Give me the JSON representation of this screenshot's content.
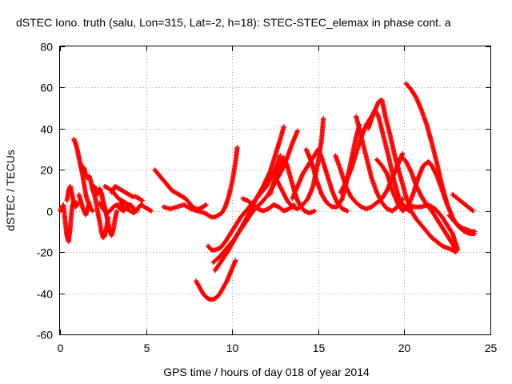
{
  "chart_data": {
    "type": "scatter",
    "title": "dSTEC Iono. truth (salu, Lon=315, Lat=-2, h=18): STEC-STEC_elemax in phase cont. a",
    "xlabel": "GPS time / hours of day 018 of year 2014",
    "ylabel": "dSTEC  / TECUs",
    "xlim": [
      0,
      25
    ],
    "ylim": [
      -60,
      80
    ],
    "xticks": [
      0,
      5,
      10,
      15,
      20,
      25
    ],
    "yticks": [
      -60,
      -40,
      -20,
      0,
      20,
      40,
      60,
      80
    ],
    "grid": true,
    "marker": "plus",
    "color": "#ff0000",
    "arcs": [
      [
        [
          0.0,
          0
        ],
        [
          0.2,
          3
        ],
        [
          0.3,
          -5
        ],
        [
          0.4,
          -12
        ],
        [
          0.5,
          -15
        ],
        [
          0.6,
          -8
        ],
        [
          0.7,
          2
        ],
        [
          0.8,
          5
        ],
        [
          0.9,
          2
        ],
        [
          1.0,
          4
        ]
      ],
      [
        [
          0.4,
          5
        ],
        [
          0.5,
          10
        ],
        [
          0.6,
          12
        ],
        [
          0.7,
          8
        ],
        [
          0.8,
          4
        ],
        [
          0.9,
          2
        ],
        [
          1.0,
          3
        ]
      ],
      [
        [
          0.8,
          35
        ],
        [
          0.9,
          33
        ],
        [
          1.0,
          30
        ],
        [
          1.1,
          26
        ],
        [
          1.2,
          22
        ],
        [
          1.3,
          18
        ],
        [
          1.4,
          13
        ],
        [
          1.5,
          8
        ],
        [
          1.6,
          5
        ],
        [
          1.7,
          3
        ],
        [
          1.8,
          1
        ],
        [
          1.9,
          0
        ]
      ],
      [
        [
          1.1,
          8
        ],
        [
          1.2,
          5
        ],
        [
          1.3,
          2
        ],
        [
          1.4,
          0
        ],
        [
          1.5,
          -2
        ],
        [
          1.6,
          1
        ],
        [
          1.7,
          4
        ]
      ],
      [
        [
          1.2,
          23
        ],
        [
          1.3,
          20
        ],
        [
          1.4,
          21
        ],
        [
          1.5,
          17
        ],
        [
          1.6,
          16
        ],
        [
          1.7,
          17
        ],
        [
          1.8,
          14
        ],
        [
          1.9,
          10
        ],
        [
          2.0,
          8
        ],
        [
          2.1,
          4
        ],
        [
          2.2,
          -1
        ],
        [
          2.3,
          -5
        ],
        [
          2.4,
          -10
        ],
        [
          2.5,
          -13
        ],
        [
          2.6,
          -12
        ],
        [
          2.7,
          -8
        ],
        [
          2.8,
          -3
        ]
      ],
      [
        [
          2.0,
          12
        ],
        [
          2.1,
          10
        ],
        [
          2.2,
          8
        ],
        [
          2.3,
          11
        ],
        [
          2.4,
          9
        ],
        [
          2.5,
          5
        ],
        [
          2.6,
          2
        ],
        [
          2.7,
          -2
        ],
        [
          2.8,
          -6
        ],
        [
          2.9,
          -10
        ],
        [
          3.0,
          -12
        ],
        [
          3.1,
          -9
        ],
        [
          3.2,
          -4
        ],
        [
          3.3,
          0
        ]
      ],
      [
        [
          2.3,
          4
        ],
        [
          2.5,
          1
        ],
        [
          2.7,
          -1
        ],
        [
          2.9,
          0
        ],
        [
          3.1,
          2
        ],
        [
          3.3,
          3
        ],
        [
          3.5,
          1
        ],
        [
          3.7,
          0
        ],
        [
          3.9,
          2
        ],
        [
          4.1,
          3
        ],
        [
          4.3,
          1
        ],
        [
          4.5,
          0
        ]
      ],
      [
        [
          2.6,
          12
        ],
        [
          2.8,
          11
        ],
        [
          3.0,
          10
        ],
        [
          3.2,
          8
        ],
        [
          3.4,
          6
        ],
        [
          3.6,
          5
        ],
        [
          3.8,
          4
        ],
        [
          4.0,
          3
        ],
        [
          4.2,
          2
        ]
      ],
      [
        [
          3.0,
          9
        ],
        [
          3.2,
          12
        ],
        [
          3.4,
          11
        ],
        [
          3.6,
          10
        ],
        [
          3.8,
          9
        ],
        [
          4.0,
          8
        ],
        [
          4.2,
          7
        ],
        [
          4.4,
          7
        ],
        [
          4.6,
          6
        ],
        [
          4.8,
          5
        ]
      ],
      [
        [
          3.5,
          4
        ],
        [
          3.7,
          2
        ],
        [
          3.9,
          1
        ],
        [
          4.1,
          0
        ],
        [
          4.3,
          -1
        ],
        [
          4.5,
          1
        ],
        [
          4.7,
          3
        ],
        [
          4.9,
          2
        ],
        [
          5.1,
          1
        ],
        [
          5.3,
          0
        ]
      ],
      [
        [
          5.5,
          20
        ],
        [
          5.7,
          18
        ],
        [
          5.9,
          16
        ],
        [
          6.1,
          14
        ],
        [
          6.3,
          12
        ],
        [
          6.5,
          10
        ],
        [
          6.7,
          9
        ],
        [
          6.9,
          8
        ],
        [
          7.1,
          7
        ],
        [
          7.3,
          6
        ],
        [
          7.5,
          4
        ],
        [
          7.7,
          2
        ],
        [
          7.9,
          1
        ],
        [
          8.1,
          1
        ],
        [
          8.3,
          2
        ],
        [
          8.5,
          3
        ]
      ],
      [
        [
          6.0,
          2
        ],
        [
          6.4,
          1
        ],
        [
          6.8,
          2
        ],
        [
          7.2,
          3
        ],
        [
          7.6,
          1
        ],
        [
          8.0,
          0
        ],
        [
          8.4,
          -1
        ],
        [
          8.8,
          -3
        ],
        [
          9.0,
          -3
        ],
        [
          9.2,
          -2
        ],
        [
          9.4,
          -1
        ],
        [
          9.6,
          2
        ],
        [
          9.8,
          7
        ],
        [
          10.0,
          14
        ],
        [
          10.2,
          24
        ],
        [
          10.3,
          31
        ]
      ],
      [
        [
          7.9,
          -34
        ],
        [
          8.1,
          -37
        ],
        [
          8.3,
          -40
        ],
        [
          8.5,
          -42
        ],
        [
          8.7,
          -43
        ],
        [
          8.9,
          -43
        ],
        [
          9.1,
          -42
        ],
        [
          9.3,
          -40
        ],
        [
          9.5,
          -37
        ],
        [
          9.7,
          -34
        ],
        [
          9.9,
          -30
        ],
        [
          10.1,
          -26
        ],
        [
          10.2,
          -24
        ]
      ],
      [
        [
          8.9,
          -25
        ],
        [
          9.3,
          -22
        ],
        [
          9.7,
          -18
        ],
        [
          10.1,
          -14
        ],
        [
          10.5,
          -9
        ],
        [
          10.9,
          -4
        ],
        [
          11.3,
          1
        ],
        [
          11.7,
          4
        ],
        [
          12.1,
          8
        ],
        [
          12.5,
          14
        ],
        [
          12.9,
          20
        ],
        [
          13.2,
          26
        ],
        [
          13.5,
          33
        ],
        [
          13.8,
          39
        ]
      ],
      [
        [
          9.0,
          -29
        ],
        [
          9.4,
          -24
        ],
        [
          9.8,
          -19
        ],
        [
          10.2,
          -13
        ],
        [
          10.6,
          -7
        ],
        [
          11.0,
          -1
        ],
        [
          11.4,
          6
        ],
        [
          11.8,
          12
        ],
        [
          12.2,
          19
        ],
        [
          12.5,
          27
        ],
        [
          12.8,
          35
        ],
        [
          13.0,
          41
        ]
      ],
      [
        [
          8.6,
          -17
        ],
        [
          8.8,
          -19
        ],
        [
          9.0,
          -19
        ],
        [
          9.3,
          -18
        ],
        [
          9.6,
          -15
        ],
        [
          9.9,
          -11
        ],
        [
          10.2,
          -7
        ],
        [
          10.5,
          -3
        ],
        [
          10.8,
          0
        ],
        [
          11.1,
          3
        ],
        [
          11.4,
          6
        ],
        [
          11.7,
          9
        ],
        [
          12.0,
          12
        ],
        [
          12.3,
          17
        ],
        [
          12.6,
          22
        ],
        [
          12.8,
          27
        ]
      ],
      [
        [
          10.6,
          6
        ],
        [
          10.9,
          5
        ],
        [
          11.2,
          3
        ],
        [
          11.5,
          1
        ],
        [
          11.8,
          0
        ],
        [
          12.1,
          1
        ],
        [
          12.4,
          3
        ],
        [
          12.7,
          2
        ],
        [
          13.0,
          0
        ],
        [
          13.3,
          1
        ],
        [
          13.6,
          3
        ]
      ],
      [
        [
          12.2,
          8
        ],
        [
          12.5,
          16
        ],
        [
          12.8,
          22
        ],
        [
          13.0,
          26
        ],
        [
          13.2,
          22
        ],
        [
          13.4,
          16
        ],
        [
          13.6,
          10
        ],
        [
          13.8,
          5
        ],
        [
          14.0,
          2
        ],
        [
          14.2,
          0
        ],
        [
          14.5,
          -1
        ],
        [
          14.8,
          0
        ]
      ],
      [
        [
          12.6,
          15
        ],
        [
          12.9,
          10
        ],
        [
          13.2,
          5
        ],
        [
          13.5,
          2
        ],
        [
          13.8,
          1
        ],
        [
          14.1,
          3
        ],
        [
          14.4,
          6
        ],
        [
          14.7,
          12
        ],
        [
          15.0,
          24
        ],
        [
          15.2,
          35
        ],
        [
          15.3,
          45
        ]
      ],
      [
        [
          13.5,
          6
        ],
        [
          13.8,
          12
        ],
        [
          14.1,
          18
        ],
        [
          14.4,
          22
        ],
        [
          14.7,
          26
        ],
        [
          15.0,
          30
        ],
        [
          15.2,
          26
        ],
        [
          15.5,
          18
        ],
        [
          15.8,
          10
        ],
        [
          16.1,
          4
        ],
        [
          16.4,
          1
        ],
        [
          16.7,
          0
        ]
      ],
      [
        [
          14.3,
          30
        ],
        [
          14.6,
          24
        ],
        [
          14.9,
          15
        ],
        [
          15.2,
          8
        ],
        [
          15.5,
          4
        ],
        [
          15.8,
          2
        ],
        [
          16.1,
          2
        ],
        [
          16.4,
          6
        ],
        [
          16.7,
          16
        ],
        [
          17.0,
          28
        ],
        [
          17.2,
          36
        ],
        [
          17.4,
          42
        ]
      ],
      [
        [
          16.0,
          27
        ],
        [
          16.3,
          20
        ],
        [
          16.6,
          12
        ],
        [
          16.9,
          7
        ],
        [
          17.2,
          4
        ],
        [
          17.5,
          2
        ],
        [
          17.8,
          1
        ],
        [
          18.1,
          2
        ],
        [
          18.4,
          4
        ],
        [
          18.7,
          6
        ],
        [
          19.0,
          10
        ],
        [
          19.3,
          16
        ],
        [
          19.6,
          22
        ],
        [
          19.9,
          28
        ]
      ],
      [
        [
          17.2,
          46
        ],
        [
          17.5,
          36
        ],
        [
          17.8,
          26
        ],
        [
          18.1,
          16
        ],
        [
          18.4,
          9
        ],
        [
          18.7,
          4
        ],
        [
          19.0,
          1
        ],
        [
          19.3,
          0
        ],
        [
          19.6,
          2
        ],
        [
          19.9,
          6
        ]
      ],
      [
        [
          16.3,
          9
        ],
        [
          16.6,
          14
        ],
        [
          16.9,
          20
        ],
        [
          17.2,
          28
        ],
        [
          17.5,
          36
        ],
        [
          17.8,
          42
        ],
        [
          18.1,
          46
        ],
        [
          18.3,
          49
        ],
        [
          18.5,
          46
        ],
        [
          18.8,
          36
        ],
        [
          19.1,
          26
        ],
        [
          19.4,
          15
        ],
        [
          19.7,
          6
        ],
        [
          20.0,
          2
        ],
        [
          20.3,
          0
        ]
      ],
      [
        [
          17.9,
          40
        ],
        [
          18.2,
          47
        ],
        [
          18.5,
          53
        ],
        [
          18.7,
          54
        ],
        [
          18.9,
          46
        ],
        [
          19.2,
          36
        ],
        [
          19.5,
          25
        ],
        [
          19.8,
          16
        ],
        [
          20.1,
          7
        ],
        [
          20.4,
          0
        ],
        [
          20.7,
          -4
        ],
        [
          21.0,
          -7
        ],
        [
          21.3,
          -10
        ],
        [
          21.6,
          -13
        ],
        [
          21.9,
          -15
        ],
        [
          22.2,
          -17
        ],
        [
          22.5,
          -18
        ],
        [
          22.8,
          -19
        ],
        [
          23.0,
          -20
        ]
      ],
      [
        [
          18.4,
          25
        ],
        [
          18.7,
          22
        ],
        [
          19.0,
          18
        ],
        [
          19.3,
          10
        ],
        [
          19.6,
          4
        ],
        [
          19.9,
          0
        ],
        [
          20.2,
          2
        ],
        [
          20.5,
          8
        ],
        [
          20.8,
          16
        ],
        [
          21.1,
          22
        ],
        [
          21.4,
          24
        ],
        [
          21.6,
          22
        ],
        [
          21.9,
          17
        ],
        [
          22.2,
          10
        ],
        [
          22.5,
          3
        ]
      ],
      [
        [
          19.6,
          24
        ],
        [
          19.9,
          26
        ],
        [
          20.1,
          24
        ],
        [
          20.4,
          19
        ],
        [
          20.7,
          12
        ],
        [
          21.0,
          7
        ],
        [
          21.3,
          3
        ],
        [
          21.6,
          0
        ],
        [
          21.9,
          -4
        ],
        [
          22.2,
          -8
        ],
        [
          22.5,
          -12
        ],
        [
          22.8,
          -16
        ],
        [
          23.0,
          -19
        ]
      ],
      [
        [
          20.1,
          62
        ],
        [
          20.4,
          59
        ],
        [
          20.7,
          55
        ],
        [
          21.0,
          49
        ],
        [
          21.3,
          42
        ],
        [
          21.6,
          33
        ],
        [
          21.9,
          23
        ],
        [
          22.2,
          12
        ],
        [
          22.5,
          3
        ],
        [
          22.8,
          -3
        ],
        [
          23.0,
          -6
        ],
        [
          23.3,
          -8
        ],
        [
          23.6,
          -9
        ],
        [
          23.9,
          -10
        ],
        [
          24.1,
          -10
        ]
      ],
      [
        [
          20.2,
          3
        ],
        [
          20.6,
          2
        ],
        [
          21.0,
          2
        ],
        [
          21.4,
          3
        ],
        [
          21.8,
          1
        ],
        [
          22.2,
          -3
        ],
        [
          22.5,
          -7
        ],
        [
          22.8,
          -11
        ],
        [
          23.0,
          -16
        ],
        [
          23.1,
          -19
        ]
      ],
      [
        [
          22.8,
          8
        ],
        [
          23.1,
          6
        ],
        [
          23.4,
          4
        ],
        [
          23.7,
          2
        ],
        [
          24.0,
          0
        ]
      ],
      [
        [
          22.6,
          -2
        ],
        [
          22.9,
          -5
        ],
        [
          23.2,
          -8
        ],
        [
          23.5,
          -10
        ],
        [
          23.8,
          -11
        ],
        [
          24.1,
          -11
        ]
      ]
    ]
  }
}
